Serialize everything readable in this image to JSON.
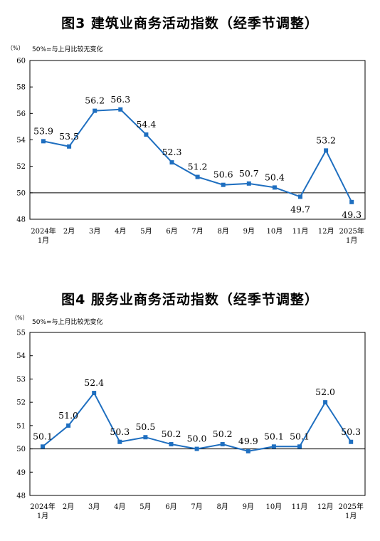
{
  "chart_data": [
    {
      "type": "line",
      "title": "图3  建筑业商务活动指数（经季节调整）",
      "unit": "（%）",
      "note": "50%=与上月比较无变化",
      "categories": [
        "2024年",
        "2月",
        "3月",
        "4月",
        "5月",
        "6月",
        "7月",
        "8月",
        "9月",
        "10月",
        "11月",
        "12月",
        "2025年"
      ],
      "categories_sub": [
        "1月",
        "",
        "",
        "",
        "",
        "",
        "",
        "",
        "",
        "",
        "",
        "",
        "1月"
      ],
      "yticks": [
        "60",
        "58",
        "56",
        "54",
        "52",
        "50",
        "48"
      ],
      "ylim": [
        48,
        60
      ],
      "reference_line": 50,
      "values": [
        53.9,
        53.5,
        56.2,
        56.3,
        54.4,
        52.3,
        51.2,
        50.6,
        50.7,
        50.4,
        49.7,
        53.2,
        49.3
      ],
      "labels": [
        "53.9",
        "53.5",
        "56.2",
        "56.3",
        "54.4",
        "52.3",
        "51.2",
        "50.6",
        "50.7",
        "50.4",
        "49.7",
        "53.2",
        "49.3"
      ],
      "label_pos": [
        "above",
        "above",
        "above",
        "above",
        "above",
        "above",
        "above",
        "above",
        "above",
        "above",
        "below",
        "above",
        "below"
      ],
      "line_color": "#1f6fc0"
    },
    {
      "type": "line",
      "title": "图4  服务业商务活动指数（经季节调整）",
      "unit": "（%）",
      "note": "50%=与上月比较无变化",
      "categories": [
        "2024年",
        "2月",
        "3月",
        "4月",
        "5月",
        "6月",
        "7月",
        "8月",
        "9月",
        "10月",
        "11月",
        "12月",
        "2025年"
      ],
      "categories_sub": [
        "1月",
        "",
        "",
        "",
        "",
        "",
        "",
        "",
        "",
        "",
        "",
        "",
        "1月"
      ],
      "yticks": [
        "55",
        "54",
        "53",
        "52",
        "51",
        "50",
        "49",
        "48"
      ],
      "ylim": [
        48,
        55
      ],
      "reference_line": 50,
      "values": [
        50.1,
        51.0,
        52.4,
        50.3,
        50.5,
        50.2,
        50.0,
        50.2,
        49.9,
        50.1,
        50.1,
        52.0,
        50.3
      ],
      "labels": [
        "50.1",
        "51.0",
        "52.4",
        "50.3",
        "50.5",
        "50.2",
        "50.0",
        "50.2",
        "49.9",
        "50.1",
        "50.1",
        "52.0",
        "50.3"
      ],
      "label_pos": [
        "above",
        "above",
        "above",
        "above",
        "above",
        "above",
        "above",
        "above",
        "above",
        "above",
        "above",
        "above",
        "above"
      ],
      "line_color": "#1f6fc0"
    }
  ]
}
